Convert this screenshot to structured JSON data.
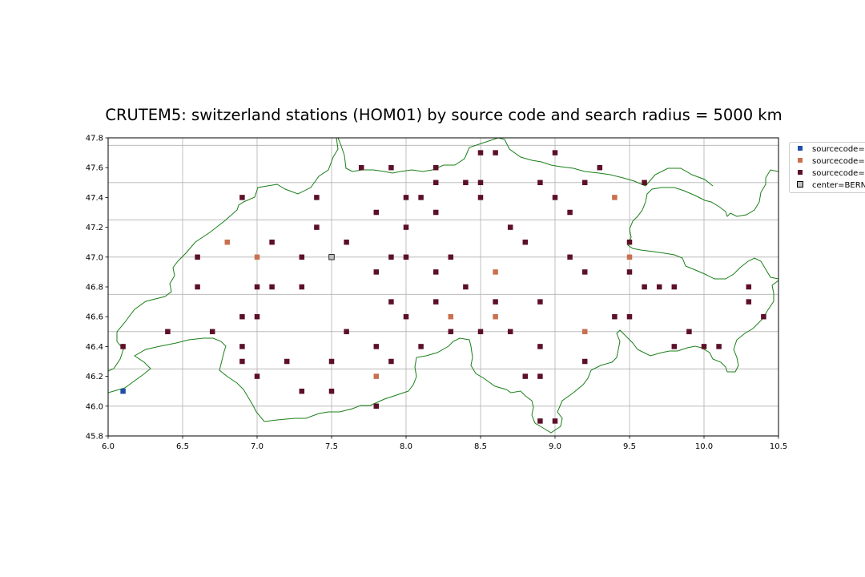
{
  "chart_data": {
    "type": "scatter",
    "title": "CRUTEM5: switzerland stations (HOM01) by source code and search radius = 5000 km",
    "xlim": [
      6.0,
      10.5
    ],
    "ylim": [
      45.8,
      47.8
    ],
    "x_ticks": [
      "6.0",
      "6.5",
      "7.0",
      "7.5",
      "8.0",
      "8.5",
      "9.0",
      "9.5",
      "10.0",
      "10.5"
    ],
    "y_ticks": [
      "45.8",
      "46.0",
      "46.2",
      "46.4",
      "46.6",
      "46.8",
      "47.0",
      "47.2",
      "47.4",
      "47.6",
      "47.8"
    ],
    "grid": true,
    "legend_position": "outside-right",
    "map_lines": {
      "color": "#1a7f1a"
    },
    "series": [
      {
        "name": "sourcecode=",
        "color": "#1f4fa8",
        "points": [
          [
            6.1,
            46.1
          ]
        ]
      },
      {
        "name": "sourcecode=",
        "color": "#c8704f",
        "points": [
          [
            6.8,
            47.1
          ],
          [
            7.0,
            47.0
          ],
          [
            9.4,
            47.4
          ],
          [
            9.5,
            47.0
          ],
          [
            8.6,
            46.9
          ],
          [
            8.3,
            46.6
          ],
          [
            8.6,
            46.6
          ],
          [
            9.2,
            46.5
          ],
          [
            7.8,
            46.2
          ]
        ]
      },
      {
        "name": "sourcecode=",
        "color": "#5c1028",
        "points": [
          [
            7.7,
            47.6
          ],
          [
            7.9,
            47.6
          ],
          [
            8.2,
            47.6
          ],
          [
            8.5,
            47.7
          ],
          [
            8.6,
            47.7
          ],
          [
            9.0,
            47.7
          ],
          [
            9.3,
            47.6
          ],
          [
            8.2,
            47.5
          ],
          [
            8.4,
            47.5
          ],
          [
            8.5,
            47.5
          ],
          [
            8.9,
            47.5
          ],
          [
            9.2,
            47.5
          ],
          [
            9.6,
            47.5
          ],
          [
            6.9,
            47.4
          ],
          [
            7.4,
            47.4
          ],
          [
            8.0,
            47.4
          ],
          [
            8.1,
            47.4
          ],
          [
            8.5,
            47.4
          ],
          [
            9.0,
            47.4
          ],
          [
            7.8,
            47.3
          ],
          [
            8.2,
            47.3
          ],
          [
            9.1,
            47.3
          ],
          [
            7.4,
            47.2
          ],
          [
            8.0,
            47.2
          ],
          [
            8.7,
            47.2
          ],
          [
            7.1,
            47.1
          ],
          [
            7.6,
            47.1
          ],
          [
            8.8,
            47.1
          ],
          [
            9.5,
            47.1
          ],
          [
            6.6,
            47.0
          ],
          [
            7.3,
            47.0
          ],
          [
            7.9,
            47.0
          ],
          [
            8.0,
            47.0
          ],
          [
            8.3,
            47.0
          ],
          [
            9.1,
            47.0
          ],
          [
            7.8,
            46.9
          ],
          [
            8.2,
            46.9
          ],
          [
            9.2,
            46.9
          ],
          [
            9.5,
            46.9
          ],
          [
            6.6,
            46.8
          ],
          [
            7.0,
            46.8
          ],
          [
            7.1,
            46.8
          ],
          [
            7.3,
            46.8
          ],
          [
            8.4,
            46.8
          ],
          [
            9.6,
            46.8
          ],
          [
            9.7,
            46.8
          ],
          [
            9.8,
            46.8
          ],
          [
            10.3,
            46.8
          ],
          [
            7.9,
            46.7
          ],
          [
            8.2,
            46.7
          ],
          [
            8.6,
            46.7
          ],
          [
            8.9,
            46.7
          ],
          [
            10.3,
            46.7
          ],
          [
            6.9,
            46.6
          ],
          [
            7.0,
            46.6
          ],
          [
            8.0,
            46.6
          ],
          [
            9.4,
            46.6
          ],
          [
            9.5,
            46.6
          ],
          [
            10.4,
            46.6
          ],
          [
            6.4,
            46.5
          ],
          [
            6.7,
            46.5
          ],
          [
            7.6,
            46.5
          ],
          [
            8.3,
            46.5
          ],
          [
            8.5,
            46.5
          ],
          [
            8.7,
            46.5
          ],
          [
            9.9,
            46.5
          ],
          [
            6.1,
            46.4
          ],
          [
            6.9,
            46.4
          ],
          [
            7.8,
            46.4
          ],
          [
            8.1,
            46.4
          ],
          [
            8.9,
            46.4
          ],
          [
            9.8,
            46.4
          ],
          [
            10.0,
            46.4
          ],
          [
            10.1,
            46.4
          ],
          [
            6.9,
            46.3
          ],
          [
            7.2,
            46.3
          ],
          [
            7.5,
            46.3
          ],
          [
            7.9,
            46.3
          ],
          [
            9.2,
            46.3
          ],
          [
            7.0,
            46.2
          ],
          [
            8.8,
            46.2
          ],
          [
            8.9,
            46.2
          ],
          [
            7.3,
            46.1
          ],
          [
            7.5,
            46.1
          ],
          [
            7.8,
            46.0
          ],
          [
            8.9,
            45.9
          ],
          [
            9.0,
            45.9
          ]
        ]
      },
      {
        "name": "center=BERN",
        "color": "#c0c0c0",
        "edge": "#000000",
        "points": [
          [
            7.5,
            47.0
          ]
        ]
      }
    ]
  }
}
